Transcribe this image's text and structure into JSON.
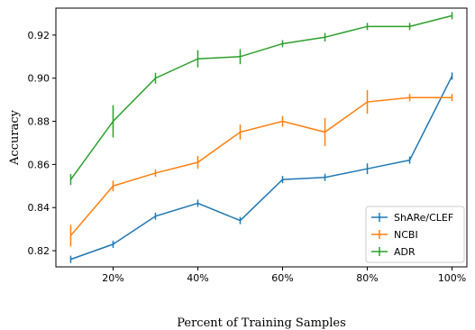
{
  "chart_data": {
    "type": "line",
    "xlabel": "Percent of Training Samples",
    "ylabel": "Accuracy",
    "x": [
      10,
      20,
      30,
      40,
      50,
      60,
      70,
      80,
      90,
      100
    ],
    "xticks": [
      20,
      40,
      60,
      80,
      100
    ],
    "xtick_labels": [
      "20%",
      "40%",
      "60%",
      "80%",
      "100%"
    ],
    "xlim": [
      6.5,
      103.5
    ],
    "ylim": [
      0.8125,
      0.9325
    ],
    "yticks": [
      0.82,
      0.84,
      0.86,
      0.88,
      0.9,
      0.92
    ],
    "ytick_labels": [
      "0.82",
      "0.84",
      "0.86",
      "0.88",
      "0.90",
      "0.92"
    ],
    "grid": false,
    "legend_position": "bottom-right",
    "series": [
      {
        "name": "ShARe/CLEF",
        "color": "#1f77b4",
        "values": [
          0.816,
          0.823,
          0.836,
          0.842,
          0.834,
          0.853,
          0.854,
          0.858,
          0.862,
          0.901
        ],
        "errors": [
          0.001,
          0.001,
          0.0005,
          0.0005,
          0.0005,
          0.0005,
          0.0005,
          0.0025,
          0.0005,
          0.0005
        ]
      },
      {
        "name": "NCBI",
        "color": "#ff7f0e",
        "values": [
          0.827,
          0.85,
          0.856,
          0.861,
          0.875,
          0.88,
          0.875,
          0.889,
          0.891,
          0.891
        ],
        "errors": [
          0.005,
          0.0025,
          0.0005,
          0.003,
          0.0035,
          0.0025,
          0.0065,
          0.0055,
          0.0015,
          0.0015
        ]
      },
      {
        "name": "ADR",
        "color": "#2ca02c",
        "values": [
          0.853,
          0.88,
          0.9,
          0.909,
          0.91,
          0.916,
          0.919,
          0.924,
          0.924,
          0.929
        ],
        "errors": [
          0.0025,
          0.0075,
          0.0025,
          0.004,
          0.0035,
          0.001,
          0.002,
          0.0015,
          0.0015,
          0.0005
        ]
      }
    ]
  }
}
